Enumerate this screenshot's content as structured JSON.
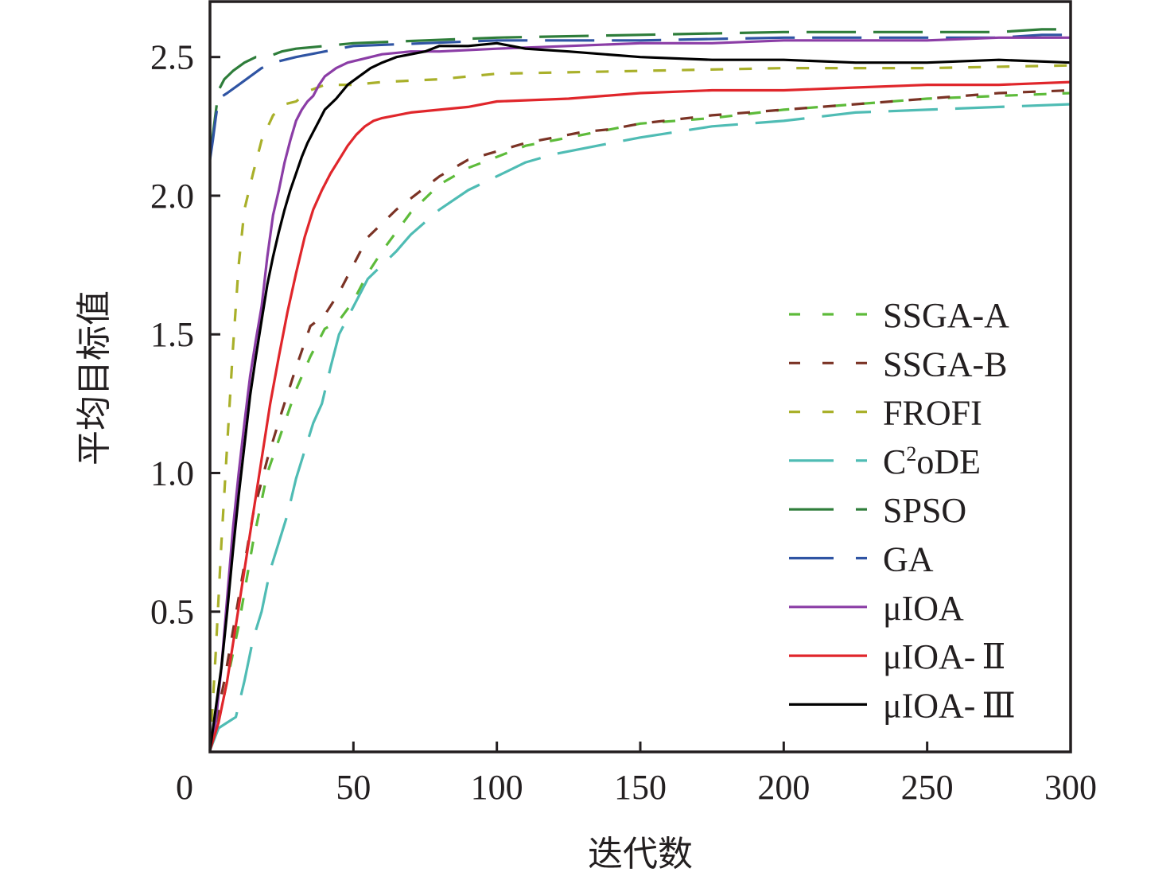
{
  "chart_data": {
    "type": "line",
    "title": "",
    "xlabel": "迭代数",
    "ylabel": "平均目标值",
    "xlim": [
      0,
      300
    ],
    "ylim": [
      0,
      2.7
    ],
    "xticks": [
      0,
      50,
      100,
      150,
      200,
      250,
      300
    ],
    "xtick_labels": [
      "0",
      "50",
      "100",
      "150",
      "200",
      "250",
      "300"
    ],
    "yticks": [
      0.5,
      1.0,
      1.5,
      2.0,
      2.5
    ],
    "ytick_labels": [
      "0.5",
      "1.0",
      "1.5",
      "2.0",
      "2.5"
    ],
    "grid": false,
    "legend_position": "bottom-right",
    "series": [
      {
        "name": "SSGA-A",
        "label_main": "SSGA-A",
        "color": "#5dbb3a",
        "dash": "short",
        "x": [
          0,
          5,
          10,
          15,
          20,
          25,
          30,
          35,
          40,
          45,
          50,
          55,
          60,
          65,
          70,
          75,
          80,
          90,
          100,
          110,
          120,
          130,
          140,
          150,
          175,
          200,
          225,
          250,
          275,
          300
        ],
        "y": [
          0.0,
          0.2,
          0.45,
          0.75,
          1.0,
          1.15,
          1.3,
          1.42,
          1.52,
          1.55,
          1.62,
          1.72,
          1.8,
          1.87,
          1.94,
          1.99,
          2.04,
          2.1,
          2.14,
          2.18,
          2.2,
          2.22,
          2.24,
          2.26,
          2.28,
          2.31,
          2.33,
          2.35,
          2.36,
          2.37
        ]
      },
      {
        "name": "SSGA-B",
        "label_main": "SSGA-B",
        "color": "#7b3325",
        "dash": "short",
        "x": [
          0,
          5,
          10,
          15,
          20,
          25,
          30,
          35,
          40,
          45,
          50,
          55,
          60,
          65,
          70,
          75,
          80,
          90,
          100,
          110,
          120,
          130,
          140,
          150,
          175,
          200,
          225,
          250,
          275,
          300
        ],
        "y": [
          0.0,
          0.25,
          0.55,
          0.85,
          1.05,
          1.22,
          1.38,
          1.53,
          1.57,
          1.65,
          1.75,
          1.85,
          1.9,
          1.95,
          1.99,
          2.03,
          2.07,
          2.13,
          2.16,
          2.19,
          2.21,
          2.23,
          2.24,
          2.26,
          2.29,
          2.31,
          2.33,
          2.35,
          2.37,
          2.38
        ]
      },
      {
        "name": "FROFI",
        "label_main": "FROFI",
        "color": "#a9b02a",
        "dash": "short",
        "x": [
          0,
          2,
          4,
          6,
          8,
          10,
          12,
          15,
          18,
          22,
          26,
          30,
          35,
          40,
          50,
          60,
          80,
          100,
          150,
          200,
          250,
          300
        ],
        "y": [
          0.0,
          0.35,
          0.75,
          1.1,
          1.45,
          1.75,
          1.95,
          2.08,
          2.2,
          2.29,
          2.33,
          2.34,
          2.38,
          2.4,
          2.4,
          2.41,
          2.42,
          2.44,
          2.45,
          2.46,
          2.46,
          2.47
        ]
      },
      {
        "name": "C2oDE",
        "label_main": "C",
        "label_sup": "2",
        "label_tail": "oDE",
        "color": "#4fbcb4",
        "dash": "long",
        "x": [
          0,
          3,
          6,
          9,
          12,
          15,
          18,
          21,
          24,
          27,
          30,
          33,
          36,
          39,
          42,
          45,
          50,
          55,
          60,
          65,
          70,
          80,
          90,
          100,
          110,
          120,
          130,
          140,
          150,
          175,
          200,
          225,
          250,
          275,
          300
        ],
        "y": [
          0.0,
          0.08,
          0.1,
          0.12,
          0.25,
          0.4,
          0.5,
          0.65,
          0.75,
          0.85,
          0.98,
          1.08,
          1.18,
          1.25,
          1.38,
          1.5,
          1.6,
          1.7,
          1.75,
          1.8,
          1.86,
          1.95,
          2.02,
          2.07,
          2.12,
          2.15,
          2.17,
          2.19,
          2.21,
          2.25,
          2.27,
          2.3,
          2.31,
          2.32,
          2.33
        ]
      },
      {
        "name": "SPSO",
        "label_main": "SPSO",
        "color": "#2e7d3a",
        "dash": "long",
        "x": [
          0,
          1,
          2,
          3,
          5,
          8,
          12,
          16,
          20,
          25,
          30,
          40,
          50,
          75,
          100,
          150,
          200,
          250,
          275,
          290,
          300
        ],
        "y": [
          2.15,
          2.22,
          2.3,
          2.38,
          2.42,
          2.45,
          2.48,
          2.5,
          2.5,
          2.52,
          2.53,
          2.54,
          2.55,
          2.56,
          2.57,
          2.58,
          2.59,
          2.59,
          2.59,
          2.6,
          2.6
        ]
      },
      {
        "name": "GA",
        "label_main": "GA",
        "color": "#2f54a3",
        "dash": "long",
        "x": [
          0,
          1,
          2,
          3,
          6,
          10,
          14,
          18,
          22,
          30,
          40,
          50,
          75,
          100,
          150,
          200,
          250,
          275,
          290,
          300
        ],
        "y": [
          2.13,
          2.2,
          2.28,
          2.35,
          2.37,
          2.4,
          2.43,
          2.46,
          2.48,
          2.5,
          2.52,
          2.54,
          2.55,
          2.56,
          2.56,
          2.57,
          2.57,
          2.57,
          2.58,
          2.58
        ]
      },
      {
        "name": "μIOA",
        "label_main": "μIOA",
        "color": "#8b3da6",
        "dash": "solid",
        "x": [
          0,
          2,
          4,
          6,
          8,
          10,
          12,
          14,
          16,
          18,
          20,
          22,
          24,
          26,
          28,
          30,
          32,
          34,
          36,
          38,
          40,
          44,
          48,
          52,
          56,
          60,
          70,
          80,
          100,
          125,
          150,
          175,
          200,
          250,
          275,
          300
        ],
        "y": [
          0.0,
          0.1,
          0.3,
          0.55,
          0.8,
          1.0,
          1.18,
          1.35,
          1.48,
          1.6,
          1.78,
          1.93,
          2.02,
          2.12,
          2.2,
          2.27,
          2.31,
          2.34,
          2.36,
          2.4,
          2.43,
          2.46,
          2.48,
          2.49,
          2.5,
          2.51,
          2.52,
          2.52,
          2.53,
          2.54,
          2.55,
          2.55,
          2.56,
          2.56,
          2.57,
          2.57
        ]
      },
      {
        "name": "μIOA-Ⅱ",
        "label_main": "μIOA-",
        "label_roman": "Ⅱ",
        "color": "#e0262b",
        "dash": "solid",
        "x": [
          0,
          3,
          6,
          9,
          12,
          15,
          18,
          21,
          24,
          27,
          30,
          33,
          36,
          39,
          42,
          45,
          48,
          51,
          54,
          57,
          60,
          65,
          70,
          80,
          90,
          100,
          125,
          150,
          175,
          200,
          225,
          250,
          275,
          300
        ],
        "y": [
          0.0,
          0.1,
          0.25,
          0.45,
          0.65,
          0.85,
          1.05,
          1.25,
          1.42,
          1.58,
          1.72,
          1.85,
          1.95,
          2.02,
          2.08,
          2.13,
          2.18,
          2.22,
          2.25,
          2.27,
          2.28,
          2.29,
          2.3,
          2.31,
          2.32,
          2.34,
          2.35,
          2.37,
          2.38,
          2.38,
          2.39,
          2.4,
          2.4,
          2.41
        ]
      },
      {
        "name": "μIOA-Ⅲ",
        "label_main": "μIOA-",
        "label_roman": "Ⅲ",
        "color": "#000000",
        "dash": "solid",
        "x": [
          0,
          2,
          4,
          6,
          8,
          10,
          12,
          14,
          16,
          18,
          20,
          22,
          24,
          26,
          28,
          30,
          32,
          34,
          36,
          38,
          40,
          44,
          48,
          52,
          56,
          60,
          65,
          70,
          75,
          80,
          90,
          100,
          110,
          125,
          150,
          175,
          200,
          225,
          250,
          275,
          300
        ],
        "y": [
          0.0,
          0.15,
          0.3,
          0.5,
          0.72,
          0.92,
          1.1,
          1.28,
          1.42,
          1.55,
          1.68,
          1.78,
          1.87,
          1.95,
          2.02,
          2.08,
          2.14,
          2.19,
          2.23,
          2.27,
          2.31,
          2.35,
          2.4,
          2.43,
          2.46,
          2.48,
          2.5,
          2.51,
          2.52,
          2.54,
          2.54,
          2.55,
          2.53,
          2.52,
          2.5,
          2.49,
          2.49,
          2.48,
          2.48,
          2.49,
          2.48
        ]
      }
    ]
  }
}
